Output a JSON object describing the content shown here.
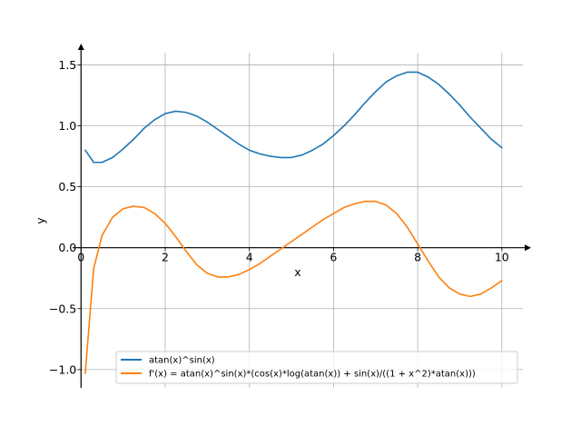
{
  "chart_data": {
    "type": "line",
    "title": "",
    "xlabel": "x",
    "ylabel": "y",
    "xlim": [
      -0.2,
      10.5
    ],
    "ylim": [
      -1.15,
      1.6
    ],
    "grid": true,
    "legend_position": "bottom-right",
    "x_ticks": [
      0,
      2,
      4,
      6,
      8,
      10
    ],
    "x_tick_labels": [
      "0",
      "2",
      "4",
      "6",
      "8",
      "10"
    ],
    "y_ticks": [
      -1.0,
      -0.5,
      0.0,
      0.5,
      1.0,
      1.5
    ],
    "y_tick_labels": [
      "−1.0",
      "−0.5",
      "0.0",
      "0.5",
      "1.0",
      "1.5"
    ],
    "x": [
      0.1,
      0.3,
      0.5,
      0.75,
      1.0,
      1.25,
      1.5,
      1.75,
      2.0,
      2.25,
      2.5,
      2.75,
      3.0,
      3.25,
      3.5,
      3.75,
      4.0,
      4.25,
      4.5,
      4.75,
      5.0,
      5.25,
      5.5,
      5.75,
      6.0,
      6.25,
      6.5,
      6.75,
      7.0,
      7.25,
      7.5,
      7.75,
      8.0,
      8.25,
      8.5,
      8.75,
      9.0,
      9.25,
      9.5,
      9.75,
      10.0
    ],
    "series": [
      {
        "name": "atan(x)^sin(x)",
        "color": "#1f77b4",
        "values": [
          0.8,
          0.7,
          0.7,
          0.74,
          0.81,
          0.89,
          0.98,
          1.05,
          1.1,
          1.12,
          1.11,
          1.08,
          1.03,
          0.97,
          0.91,
          0.85,
          0.8,
          0.77,
          0.75,
          0.74,
          0.74,
          0.76,
          0.8,
          0.85,
          0.92,
          1.0,
          1.09,
          1.19,
          1.28,
          1.36,
          1.41,
          1.44,
          1.44,
          1.4,
          1.34,
          1.26,
          1.17,
          1.07,
          0.98,
          0.89,
          0.82
        ]
      },
      {
        "name": "f'(x) = atan(x)^sin(x)*(cos(x)*log(atan(x)) + sin(x)/((1 + x^2)*atan(x)))",
        "color": "#ff7f0e",
        "values": [
          -1.03,
          -0.17,
          0.1,
          0.25,
          0.32,
          0.34,
          0.33,
          0.28,
          0.2,
          0.09,
          -0.03,
          -0.14,
          -0.21,
          -0.24,
          -0.24,
          -0.22,
          -0.18,
          -0.13,
          -0.07,
          -0.01,
          0.05,
          0.11,
          0.17,
          0.23,
          0.28,
          0.33,
          0.36,
          0.38,
          0.38,
          0.35,
          0.28,
          0.17,
          0.03,
          -0.11,
          -0.24,
          -0.33,
          -0.38,
          -0.4,
          -0.38,
          -0.33,
          -0.27
        ]
      }
    ]
  }
}
